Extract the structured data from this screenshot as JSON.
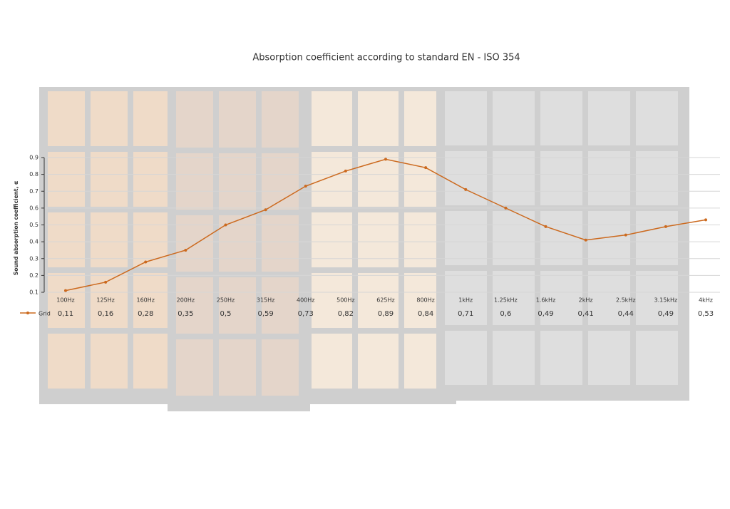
{
  "chart_data": {
    "type": "line",
    "title": "Absorption coefficient according to standard EN - ISO 354",
    "y_label": "Sound absorption coefficient, α",
    "categories": [
      "100Hz",
      "125Hz",
      "160Hz",
      "200Hz",
      "250Hz",
      "315Hz",
      "400Hz",
      "500Hz",
      "625Hz",
      "800Hz",
      "1kHz",
      "1.25kHz",
      "1.6kHz",
      "2kHz",
      "2.5kHz",
      "3.15kHz",
      "4kHz"
    ],
    "series": [
      {
        "name": "Grid",
        "color": "#cc6a1f",
        "values": [
          0.11,
          0.16,
          0.28,
          0.35,
          0.5,
          0.59,
          0.73,
          0.82,
          0.89,
          0.84,
          0.71,
          0.6,
          0.49,
          0.41,
          0.44,
          0.49,
          0.53
        ],
        "value_labels": [
          "0,11",
          "0,16",
          "0,28",
          "0,35",
          "0,5",
          "0,59",
          "0,73",
          "0,82",
          "0,89",
          "0,84",
          "0,71",
          "0,6",
          "0,49",
          "0,41",
          "0,44",
          "0,49",
          "0,53"
        ]
      }
    ],
    "ylim": [
      0.1,
      0.9
    ],
    "yticks": [
      0.1,
      0.2,
      0.3,
      0.4,
      0.5,
      0.6,
      0.7,
      0.8,
      0.9
    ],
    "grid": true
  }
}
